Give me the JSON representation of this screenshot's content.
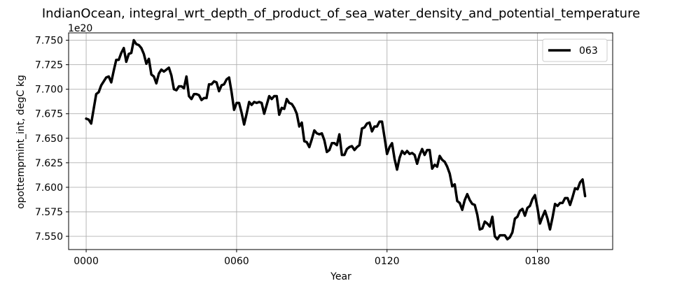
{
  "chart_data": {
    "type": "line",
    "title": "IndianOcean, integral_wrt_depth_of_product_of_sea_water_density_and_potential_temperature",
    "xlabel": "Year",
    "ylabel": "opottempmint_int, degC kg",
    "y_offset_text": "1e20",
    "y_multiplier": 1e+20,
    "xlim": [
      -7,
      210
    ],
    "ylim": [
      7.5365,
      7.7575
    ],
    "x_ticks": [
      0,
      60,
      120,
      180
    ],
    "x_tick_labels": [
      "0000",
      "0060",
      "0120",
      "0180"
    ],
    "y_ticks": [
      7.55,
      7.575,
      7.6,
      7.625,
      7.65,
      7.675,
      7.7,
      7.725,
      7.75
    ],
    "y_tick_labels": [
      "7.550",
      "7.575",
      "7.600",
      "7.625",
      "7.650",
      "7.675",
      "7.700",
      "7.725",
      "7.750"
    ],
    "grid": true,
    "legend_position": "top-right",
    "series": [
      {
        "name": "063",
        "color": "#000000",
        "x": [
          0,
          1,
          2,
          3,
          4,
          5,
          6,
          7,
          8,
          9,
          10,
          11,
          12,
          13,
          14,
          15,
          16,
          17,
          18,
          19,
          20,
          21,
          22,
          23,
          24,
          25,
          26,
          27,
          28,
          29,
          30,
          31,
          32,
          33,
          34,
          35,
          36,
          37,
          38,
          39,
          40,
          41,
          42,
          43,
          44,
          45,
          46,
          47,
          48,
          49,
          50,
          51,
          52,
          53,
          54,
          55,
          56,
          57,
          58,
          59,
          60,
          61,
          62,
          63,
          64,
          65,
          66,
          67,
          68,
          69,
          70,
          71,
          72,
          73,
          74,
          75,
          76,
          77,
          78,
          79,
          80,
          81,
          82,
          83,
          84,
          85,
          86,
          87,
          88,
          89,
          90,
          91,
          92,
          93,
          94,
          95,
          96,
          97,
          98,
          99,
          100,
          101,
          102,
          103,
          104,
          105,
          106,
          107,
          108,
          109,
          110,
          111,
          112,
          113,
          114,
          115,
          116,
          117,
          118,
          119,
          120,
          121,
          122,
          123,
          124,
          125,
          126,
          127,
          128,
          129,
          130,
          131,
          132,
          133,
          134,
          135,
          136,
          137,
          138,
          139,
          140,
          141,
          142,
          143,
          144,
          145,
          146,
          147,
          148,
          149,
          150,
          151,
          152,
          153,
          154,
          155,
          156,
          157,
          158,
          159,
          160,
          161,
          162,
          163,
          164,
          165,
          166,
          167,
          168,
          169,
          170,
          171,
          172,
          173,
          174,
          175,
          176,
          177,
          178,
          179,
          180,
          181,
          182,
          183,
          184,
          185,
          186,
          187,
          188,
          189,
          190,
          191,
          192,
          193,
          194,
          195,
          196,
          197,
          198,
          199
        ],
        "values": [
          7.67,
          7.669,
          7.665,
          7.68,
          7.695,
          7.697,
          7.704,
          7.708,
          7.712,
          7.713,
          7.707,
          7.719,
          7.73,
          7.73,
          7.737,
          7.742,
          7.728,
          7.736,
          7.737,
          7.75,
          7.746,
          7.745,
          7.742,
          7.736,
          7.726,
          7.731,
          7.715,
          7.713,
          7.706,
          7.716,
          7.72,
          7.718,
          7.72,
          7.722,
          7.714,
          7.7,
          7.699,
          7.703,
          7.703,
          7.701,
          7.713,
          7.693,
          7.69,
          7.695,
          7.695,
          7.694,
          7.689,
          7.691,
          7.691,
          7.705,
          7.705,
          7.708,
          7.707,
          7.698,
          7.704,
          7.705,
          7.71,
          7.712,
          7.697,
          7.679,
          7.686,
          7.686,
          7.676,
          7.664,
          7.675,
          7.687,
          7.684,
          7.687,
          7.686,
          7.687,
          7.686,
          7.675,
          7.684,
          7.693,
          7.69,
          7.693,
          7.693,
          7.674,
          7.681,
          7.68,
          7.69,
          7.686,
          7.685,
          7.681,
          7.675,
          7.662,
          7.666,
          7.647,
          7.646,
          7.641,
          7.649,
          7.658,
          7.655,
          7.654,
          7.655,
          7.648,
          7.636,
          7.638,
          7.645,
          7.645,
          7.643,
          7.654,
          7.633,
          7.633,
          7.639,
          7.641,
          7.642,
          7.638,
          7.641,
          7.643,
          7.66,
          7.661,
          7.665,
          7.666,
          7.657,
          7.662,
          7.662,
          7.667,
          7.667,
          7.651,
          7.634,
          7.641,
          7.645,
          7.629,
          7.618,
          7.63,
          7.637,
          7.634,
          7.637,
          7.634,
          7.635,
          7.633,
          7.624,
          7.633,
          7.639,
          7.633,
          7.638,
          7.638,
          7.619,
          7.623,
          7.621,
          7.632,
          7.628,
          7.626,
          7.621,
          7.614,
          7.601,
          7.603,
          7.586,
          7.584,
          7.577,
          7.587,
          7.593,
          7.587,
          7.583,
          7.582,
          7.572,
          7.557,
          7.558,
          7.565,
          7.563,
          7.56,
          7.57,
          7.55,
          7.547,
          7.551,
          7.551,
          7.551,
          7.547,
          7.549,
          7.554,
          7.568,
          7.57,
          7.576,
          7.578,
          7.571,
          7.579,
          7.581,
          7.588,
          7.592,
          7.579,
          7.563,
          7.57,
          7.576,
          7.568,
          7.557,
          7.569,
          7.583,
          7.581,
          7.584,
          7.584,
          7.589,
          7.589,
          7.582,
          7.59,
          7.599,
          7.598,
          7.605,
          7.608,
          7.591
        ]
      }
    ]
  }
}
